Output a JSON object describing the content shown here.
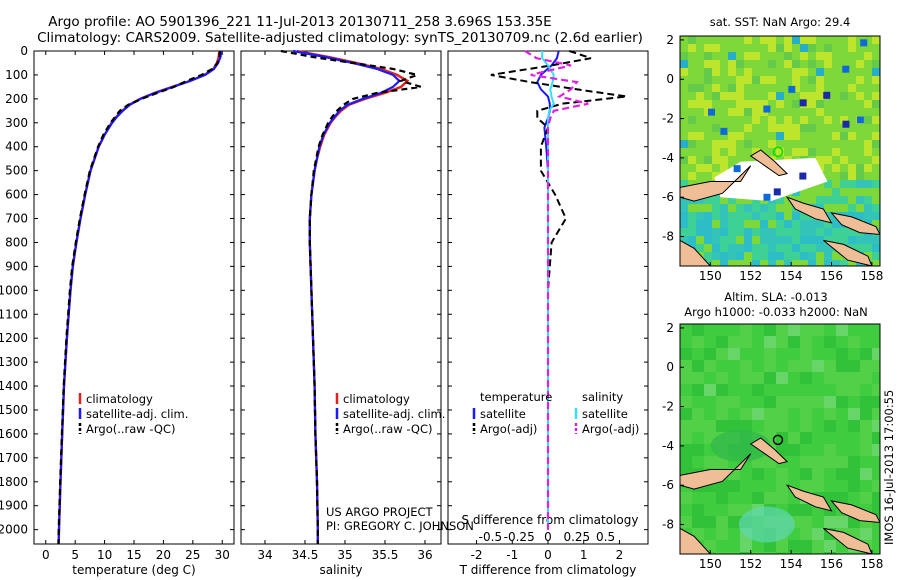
{
  "title_line1": "Argo profile: AO 5901396_221 11-Jul-2013 20130711_258 3.696S 153.35E",
  "title_line2": "Climatology: CARS2009. Satellite-adjusted climatology: synTS_20130709.nc (2.6d earlier)",
  "credit_line1": "US ARGO PROJECT",
  "credit_line2": "PI: GREGORY C. JOHNSON",
  "timestamp": "IMOS 16-Jul-2013 17:00:55",
  "colors": {
    "climatology": "#e8201a",
    "satellite": "#1a1aff",
    "argo": "#000000",
    "sal_sat": "#33e0ff",
    "sal_argo": "#e020e0",
    "land": "#efbe96",
    "ocean_green": "#44cc44"
  },
  "chart_data": [
    {
      "type": "line",
      "panel": "temperature",
      "xlabel": "temperature (deg C)",
      "ylabel": "",
      "xlim": [
        -2,
        32
      ],
      "ylim": [
        2060,
        0
      ],
      "xticks": [
        "0",
        "5",
        "10",
        "15",
        "20",
        "25",
        "30"
      ],
      "yticks": [
        "0",
        "100",
        "200",
        "300",
        "400",
        "500",
        "600",
        "700",
        "800",
        "900",
        "1000",
        "1100",
        "1200",
        "1300",
        "1400",
        "1500",
        "1600",
        "1700",
        "1800",
        "1900",
        "2000"
      ],
      "legend": [
        "climatology",
        "satellite-adj. clim.",
        "Argo(..raw -QC)"
      ],
      "depth": [
        0,
        25,
        50,
        75,
        100,
        125,
        150,
        175,
        200,
        225,
        250,
        275,
        300,
        350,
        400,
        450,
        500,
        600,
        700,
        800,
        900,
        1000,
        1200,
        1400,
        1600,
        1800,
        2000,
        2060
      ],
      "series": [
        {
          "name": "climatology",
          "values": [
            29.5,
            29.4,
            29.1,
            28.5,
            27.0,
            24.5,
            21.5,
            18.5,
            16.0,
            14.2,
            13.0,
            12.0,
            11.2,
            10.0,
            9.0,
            8.3,
            7.6,
            6.7,
            5.9,
            5.2,
            4.6,
            4.2,
            3.6,
            3.1,
            2.8,
            2.5,
            2.25,
            2.2
          ]
        },
        {
          "name": "satellite-adj. clim.",
          "values": [
            29.8,
            29.7,
            29.3,
            28.6,
            27.1,
            24.6,
            21.6,
            18.6,
            16.1,
            14.3,
            13.1,
            12.1,
            11.3,
            10.0,
            9.0,
            8.3,
            7.6,
            6.7,
            5.9,
            5.2,
            4.6,
            4.2,
            3.6,
            3.1,
            2.8,
            2.5,
            2.25,
            2.2
          ]
        },
        {
          "name": "Argo(..raw -QC)",
          "values": [
            29.6,
            29.5,
            29.2,
            28.3,
            26.5,
            24.0,
            21.8,
            19.0,
            16.3,
            14.0,
            12.6,
            11.8,
            11.0,
            9.8,
            8.9,
            8.2,
            7.5,
            6.6,
            5.8,
            5.1,
            4.5,
            4.1,
            3.5,
            3.05,
            2.75,
            2.45,
            2.2,
            2.15
          ]
        }
      ]
    },
    {
      "type": "line",
      "panel": "salinity",
      "xlabel": "salinity",
      "xlim": [
        33.7,
        36.2
      ],
      "ylim": [
        2060,
        0
      ],
      "xticks": [
        "34",
        "34.5",
        "35",
        "35.5",
        "36"
      ],
      "legend": [
        "climatology",
        "satellite-adj. clim.",
        "Argo(..raw -QC)"
      ],
      "depth": [
        0,
        25,
        50,
        75,
        100,
        125,
        150,
        175,
        200,
        225,
        250,
        275,
        300,
        350,
        400,
        450,
        500,
        600,
        700,
        800,
        900,
        1000,
        1200,
        1400,
        1600,
        1800,
        2000,
        2060
      ],
      "series": [
        {
          "name": "climatology",
          "values": [
            34.4,
            34.8,
            35.15,
            35.45,
            35.65,
            35.78,
            35.7,
            35.5,
            35.25,
            35.05,
            34.95,
            34.88,
            34.82,
            34.74,
            34.69,
            34.65,
            34.62,
            34.58,
            34.56,
            34.56,
            34.57,
            34.58,
            34.6,
            34.62,
            34.63,
            34.65,
            34.66,
            34.66
          ]
        },
        {
          "name": "satellite-adj. clim.",
          "values": [
            34.35,
            34.75,
            35.1,
            35.4,
            35.6,
            35.68,
            35.6,
            35.45,
            35.22,
            35.03,
            34.93,
            34.87,
            34.81,
            34.73,
            34.68,
            34.65,
            34.62,
            34.58,
            34.56,
            34.56,
            34.57,
            34.58,
            34.6,
            34.62,
            34.63,
            34.65,
            34.66,
            34.66
          ]
        },
        {
          "name": "Argo(..raw -QC)",
          "values": [
            34.2,
            34.6,
            35.1,
            35.6,
            35.9,
            35.7,
            35.95,
            35.4,
            35.1,
            34.98,
            34.9,
            34.84,
            34.79,
            34.72,
            34.67,
            34.64,
            34.61,
            34.58,
            34.56,
            34.56,
            34.57,
            34.58,
            34.6,
            34.62,
            34.63,
            34.65,
            34.66,
            34.66
          ]
        }
      ]
    },
    {
      "type": "line",
      "panel": "difference",
      "xlabel": "T difference from climatology",
      "xlabel_top": "S difference from climatology",
      "xlim": [
        -2.8,
        2.8
      ],
      "ylim": [
        2060,
        0
      ],
      "xticks_T": [
        "-2",
        "-1",
        "0",
        "1",
        "2"
      ],
      "xticks_S": [
        "-0.5",
        "-0.25",
        "0",
        "0.25",
        "0.5"
      ],
      "legend_headers": [
        "temperature",
        "salinity"
      ],
      "legend": [
        "satellite",
        "Argo(-adj)",
        "satellite",
        "Argo(-adj)"
      ],
      "depth": [
        0,
        30,
        60,
        100,
        130,
        160,
        190,
        220,
        250,
        280,
        320,
        400,
        500,
        600,
        700,
        800,
        1000,
        1400,
        1800,
        2000
      ],
      "series": [
        {
          "name": "temperature satellite",
          "values": [
            0.3,
            0.25,
            0.1,
            -0.2,
            -0.3,
            -0.2,
            0.0,
            0.05,
            0.05,
            0.0,
            -0.1,
            -0.05,
            0.0,
            0.0,
            0.0,
            0.0,
            0.0,
            0.0,
            0.0,
            0.0
          ]
        },
        {
          "name": "temperature Argo(-adj)",
          "values": [
            0.6,
            1.2,
            0.1,
            -1.6,
            -0.5,
            0.8,
            2.2,
            0.4,
            -0.3,
            -0.3,
            0.0,
            -0.2,
            -0.2,
            0.2,
            0.5,
            0.1,
            0.0,
            0.0,
            0.0,
            0.0
          ]
        },
        {
          "name": "salinity satellite",
          "values": [
            -0.05,
            -0.05,
            0.0,
            0.05,
            0.04,
            0.02,
            0.03,
            0.05,
            0.01,
            0.0,
            0.0,
            0.0,
            0.0,
            0.0,
            0.0,
            0.0,
            0.0,
            0.0,
            0.0,
            0.0
          ]
        },
        {
          "name": "salinity Argo(-adj)",
          "values": [
            -0.2,
            -0.1,
            0.2,
            -0.15,
            0.25,
            0.2,
            0.1,
            0.35,
            0.05,
            0.02,
            0.0,
            0.0,
            0.0,
            0.0,
            0.0,
            0.0,
            0.0,
            0.0,
            0.0,
            0.0
          ]
        }
      ]
    },
    {
      "type": "heatmap",
      "panel": "sst_map",
      "title": "sat. SST: NaN Argo: 29.4",
      "xlim": [
        148.5,
        158.4
      ],
      "ylim": [
        -9.5,
        2.2
      ],
      "xticks": [
        "150",
        "152",
        "154",
        "156",
        "158"
      ],
      "yticks": [
        "2",
        "0",
        "-2",
        "-4",
        "-6",
        "-8"
      ]
    },
    {
      "type": "heatmap",
      "panel": "sla_map",
      "title_line1": "Altim. SLA: -0.013",
      "title_line2": "Argo h1000: -0.033 h2000: NaN",
      "xlim": [
        148.5,
        158.4
      ],
      "ylim": [
        -9.5,
        2.2
      ],
      "xticks": [
        "150",
        "152",
        "154",
        "156",
        "158"
      ],
      "yticks": [
        "2",
        "0",
        "-2",
        "-4",
        "-6",
        "-8"
      ]
    }
  ]
}
